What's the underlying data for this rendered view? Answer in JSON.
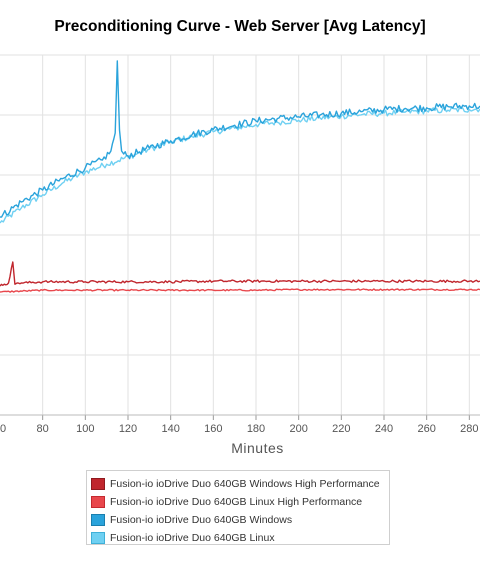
{
  "chart_data": {
    "type": "line",
    "title": "Preconditioning Curve - Web Server [Avg Latency]",
    "xlabel": "Minutes",
    "ylabel": "",
    "xlim": [
      60,
      285
    ],
    "ylim": [
      0,
      6
    ],
    "xticks": [
      80,
      100,
      120,
      140,
      160,
      180,
      200,
      220,
      240,
      260,
      280
    ],
    "grid": true,
    "legend_position": "bottom",
    "series": [
      {
        "name": "Fusion-io ioDrive Duo 640GB Windows High Performance",
        "color": "#c0262d",
        "swatch_border": "#8f1a1f",
        "x": [
          60,
          62,
          64,
          66,
          67,
          68,
          70,
          80,
          100,
          120,
          140,
          160,
          180,
          200,
          220,
          240,
          260,
          280,
          285
        ],
        "y": [
          2.15,
          2.18,
          2.2,
          2.55,
          2.18,
          2.2,
          2.2,
          2.22,
          2.22,
          2.22,
          2.22,
          2.23,
          2.23,
          2.23,
          2.23,
          2.23,
          2.23,
          2.23,
          2.23
        ]
      },
      {
        "name": "Fusion-io ioDrive Duo 640GB Linux High Performance",
        "color": "#e8474c",
        "swatch_border": "#c42a30",
        "x": [
          60,
          80,
          100,
          120,
          140,
          160,
          180,
          200,
          220,
          240,
          260,
          280,
          285
        ],
        "y": [
          2.05,
          2.08,
          2.08,
          2.08,
          2.08,
          2.08,
          2.08,
          2.09,
          2.09,
          2.09,
          2.09,
          2.09,
          2.09
        ]
      },
      {
        "name": "Fusion-io ioDrive Duo 640GB Windows",
        "color": "#2aa3db",
        "swatch_border": "#1a7fae",
        "x": [
          60,
          70,
          80,
          90,
          100,
          108,
          112,
          114,
          115,
          116,
          117,
          118,
          120,
          130,
          140,
          150,
          160,
          170,
          180,
          190,
          200,
          210,
          220,
          230,
          240,
          250,
          260,
          270,
          280,
          285
        ],
        "y": [
          3.3,
          3.55,
          3.75,
          3.95,
          4.12,
          4.25,
          4.4,
          4.7,
          5.9,
          4.75,
          4.4,
          4.35,
          4.32,
          4.45,
          4.57,
          4.67,
          4.76,
          4.83,
          4.9,
          4.94,
          4.97,
          5.0,
          5.03,
          5.06,
          5.09,
          5.11,
          5.12,
          5.14,
          5.15,
          5.15
        ]
      },
      {
        "name": "Fusion-io ioDrive Duo 640GB Linux",
        "color": "#6fd0f2",
        "swatch_border": "#3fb0d8",
        "x": [
          60,
          70,
          80,
          90,
          100,
          110,
          120,
          130,
          140,
          150,
          160,
          170,
          180,
          190,
          200,
          210,
          220,
          230,
          240,
          250,
          260,
          270,
          280,
          285
        ],
        "y": [
          3.2,
          3.45,
          3.67,
          3.88,
          4.05,
          4.18,
          4.3,
          4.43,
          4.55,
          4.64,
          4.72,
          4.78,
          4.84,
          4.88,
          4.91,
          4.95,
          4.98,
          5.01,
          5.03,
          5.05,
          5.07,
          5.08,
          5.09,
          5.1
        ]
      }
    ]
  }
}
